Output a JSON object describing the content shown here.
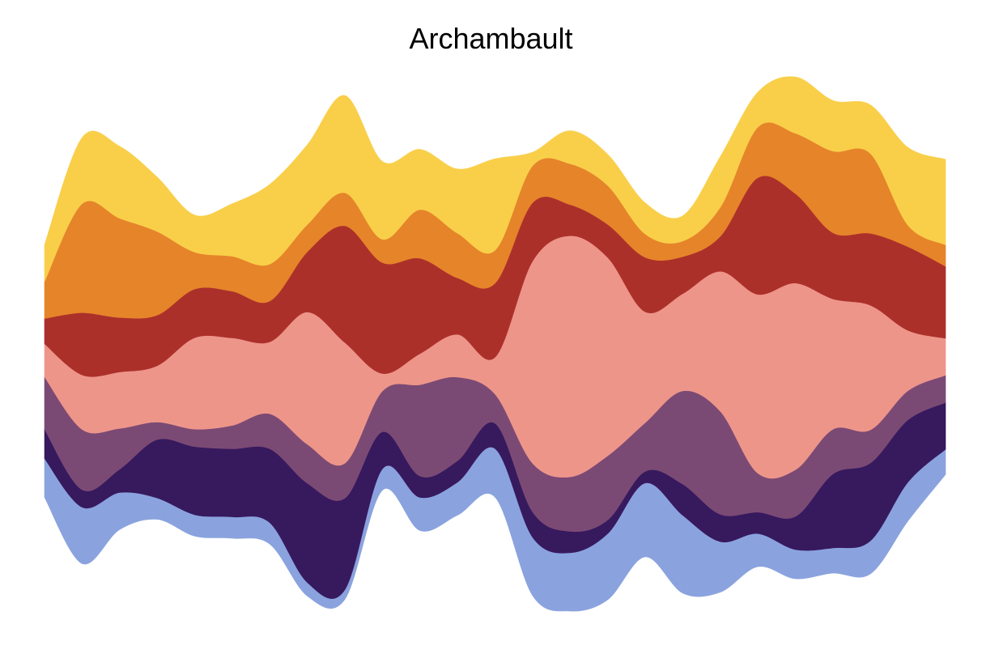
{
  "chart_data": {
    "type": "area",
    "stacked": true,
    "baseline": "wiggle",
    "title": "Archambault",
    "xlabel": "",
    "ylabel": "",
    "axes_visible": false,
    "grid": false,
    "legend": "none",
    "x": [
      0,
      1,
      2,
      3,
      4,
      5,
      6,
      7,
      8,
      9,
      10,
      11,
      12,
      13,
      14,
      15,
      16,
      17,
      18,
      19,
      20,
      21,
      22,
      23,
      24
    ],
    "series": [
      {
        "color": "#8aa3de",
        "values": [
          1.0,
          1.45,
          0.95,
          0.55,
          0.55,
          0.55,
          0.55,
          0.35,
          0.25,
          0.55,
          0.85,
          0.85,
          1.25,
          1.5,
          1.5,
          1.7,
          1.9,
          2.0,
          1.3,
          0.85,
          0.75,
          0.65,
          0.85,
          1.0,
          0.65
        ]
      },
      {
        "color": "#37195e",
        "values": [
          0.75,
          0.45,
          0.6,
          1.5,
          1.75,
          1.75,
          1.9,
          2.55,
          2.35,
          0.95,
          0.55,
          0.55,
          0.65,
          0.65,
          0.55,
          0.35,
          0.3,
          0.8,
          0.7,
          0.55,
          0.85,
          1.9,
          2.0,
          1.6,
          1.2
        ]
      },
      {
        "color": "#7b4a74",
        "values": [
          1.35,
          1.55,
          1.05,
          0.45,
          0.45,
          0.6,
          0.9,
          1.0,
          0.9,
          1.05,
          2.35,
          2.15,
          0.75,
          1.25,
          1.4,
          1.65,
          1.25,
          2.4,
          2.65,
          1.0,
          1.2,
          1.15,
          0.85,
          0.75,
          0.7
        ]
      },
      {
        "color": "#ee958a",
        "values": [
          0.85,
          1.4,
          1.45,
          1.45,
          2.35,
          2.25,
          1.85,
          3.4,
          3.1,
          0.45,
          0.8,
          1.1,
          0.95,
          5.2,
          6.2,
          5.1,
          2.85,
          2.5,
          3.6,
          4.6,
          4.8,
          3.35,
          3.2,
          1.55,
          0.95
        ]
      },
      {
        "color": "#ac302a",
        "values": [
          0.65,
          1.6,
          1.4,
          1.3,
          1.25,
          1.2,
          1.05,
          1.55,
          3.0,
          2.85,
          2.45,
          1.45,
          1.9,
          1.5,
          0.8,
          0.85,
          1.4,
          0.95,
          0.9,
          3.0,
          2.3,
          1.7,
          1.85,
          2.15,
          1.85
        ]
      },
      {
        "color": "#e6842a",
        "values": [
          0.95,
          2.8,
          2.55,
          2.15,
          0.95,
          0.9,
          0.95,
          0.7,
          0.85,
          0.6,
          1.25,
          1.15,
          0.85,
          0.95,
          1.05,
          1.0,
          0.6,
          0.4,
          0.75,
          1.3,
          1.55,
          2.1,
          2.05,
          0.55,
          0.55
        ]
      },
      {
        "color": "#f9cf4a",
        "values": [
          0.95,
          1.7,
          1.85,
          1.4,
          0.95,
          1.35,
          2.05,
          2.05,
          2.5,
          2.0,
          1.55,
          1.65,
          2.35,
          0.35,
          0.85,
          0.8,
          0.8,
          0.65,
          1.3,
          0.9,
          1.45,
          1.3,
          1.25,
          2.0,
          2.2
        ]
      }
    ]
  }
}
